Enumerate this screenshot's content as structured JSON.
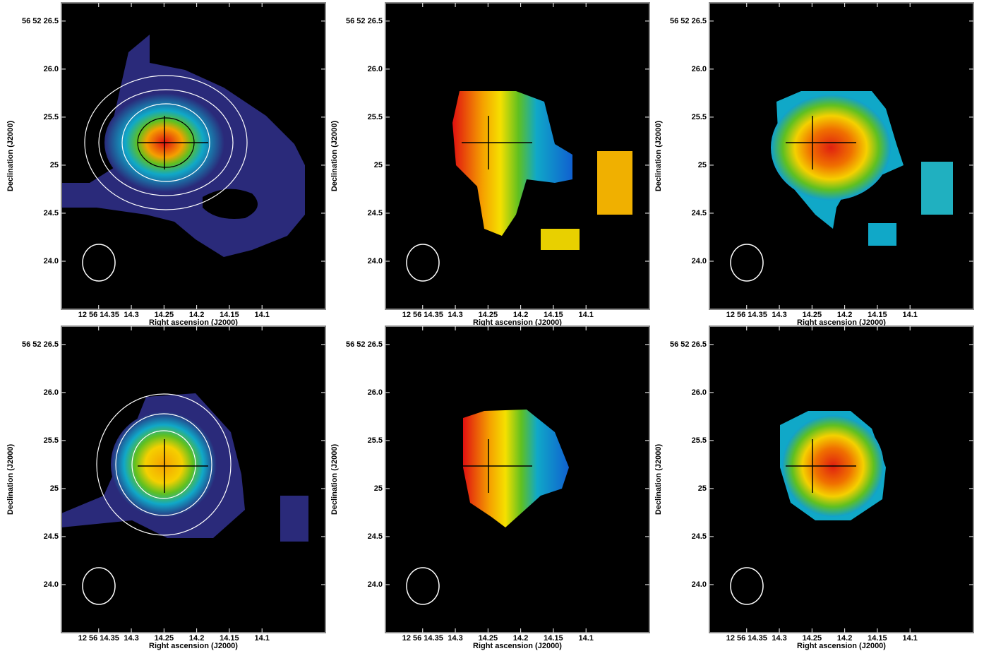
{
  "chart_data": [
    {
      "type": "image",
      "xlabel": "Right ascension (J2000)",
      "ylabel": "Declination (J2000)",
      "xlim": [
        14.407,
        14.003
      ],
      "ylim": [
        23.5,
        26.69
      ],
      "xticks": [
        {
          "value": 14.35,
          "label": "12 56 14.35"
        },
        14.3,
        14.25,
        14.2,
        14.15,
        14.1
      ],
      "yticks": [
        {
          "value": 24,
          "label": "24.0"
        },
        24.5,
        25,
        {
          "value": 25.5,
          "label": "25.5"
        },
        {
          "value": 26,
          "label": "26.0"
        },
        {
          "value": 26.5,
          "label": "56 52 26.5"
        }
      ]
    },
    {
      "type": "image",
      "xlabel": "Right ascension (J2000)",
      "ylabel": "Declination (J2000)",
      "xlim": [
        14.407,
        14.003
      ],
      "ylim": [
        23.5,
        26.69
      ],
      "xticks": [
        {
          "value": 14.35,
          "label": "12 56 14.35"
        },
        14.3,
        14.25,
        14.2,
        14.15,
        14.1
      ],
      "yticks": [
        {
          "value": 24,
          "label": "24.0"
        },
        24.5,
        25,
        {
          "value": 25.5,
          "label": "25.5"
        },
        {
          "value": 26,
          "label": "26.0"
        },
        {
          "value": 26.5,
          "label": "56 52 26.5"
        }
      ]
    },
    {
      "type": "image",
      "xlabel": "Right ascension (J2000)",
      "ylabel": "Declination (J2000)",
      "xlim": [
        14.407,
        14.003
      ],
      "ylim": [
        23.5,
        26.69
      ],
      "xticks": [
        {
          "value": 14.35,
          "label": "12 56 14.35"
        },
        14.3,
        14.25,
        14.2,
        14.15,
        14.1
      ],
      "yticks": [
        {
          "value": 24,
          "label": "24.0"
        },
        24.5,
        25,
        {
          "value": 25.5,
          "label": "25.5"
        },
        {
          "value": 26,
          "label": "26.0"
        },
        {
          "value": 26.5,
          "label": "56 52 26.5"
        }
      ]
    },
    {
      "type": "image",
      "xlabel": "Right ascension (J2000)",
      "ylabel": "Declination (J2000)",
      "xlim": [
        14.407,
        14.003
      ],
      "ylim": [
        23.5,
        26.69
      ],
      "xticks": [
        {
          "value": 14.35,
          "label": "12 56 14.35"
        },
        14.3,
        14.25,
        14.2,
        14.15,
        14.1
      ],
      "yticks": [
        {
          "value": 24,
          "label": "24.0"
        },
        24.5,
        25,
        {
          "value": 25.5,
          "label": "25.5"
        },
        {
          "value": 26,
          "label": "26.0"
        },
        {
          "value": 26.5,
          "label": "56 52 26.5"
        }
      ]
    },
    {
      "type": "image",
      "xlabel": "Right ascension (J2000)",
      "ylabel": "Declination (J2000)",
      "xlim": [
        14.407,
        14.003
      ],
      "ylim": [
        23.5,
        26.69
      ],
      "xticks": [
        {
          "value": 14.35,
          "label": "12 56 14.35"
        },
        14.3,
        14.25,
        14.2,
        14.15,
        14.1
      ],
      "yticks": [
        {
          "value": 24,
          "label": "24.0"
        },
        24.5,
        25,
        {
          "value": 25.5,
          "label": "25.5"
        },
        {
          "value": 26,
          "label": "26.0"
        },
        {
          "value": 26.5,
          "label": "56 52 26.5"
        }
      ]
    },
    {
      "type": "image",
      "xlabel": "Right ascension (J2000)",
      "ylabel": "Declination (J2000)",
      "xlim": [
        14.407,
        14.003
      ],
      "ylim": [
        23.5,
        26.69
      ],
      "xticks": [
        {
          "value": 14.35,
          "label": "12 56 14.35"
        },
        14.3,
        14.25,
        14.2,
        14.15,
        14.1
      ],
      "yticks": [
        {
          "value": 24,
          "label": "24.0"
        },
        24.5,
        25,
        {
          "value": 25.5,
          "label": "25.5"
        },
        {
          "value": 26,
          "label": "26.0"
        },
        {
          "value": 26.5,
          "label": "56 52 26.5"
        }
      ]
    }
  ]
}
